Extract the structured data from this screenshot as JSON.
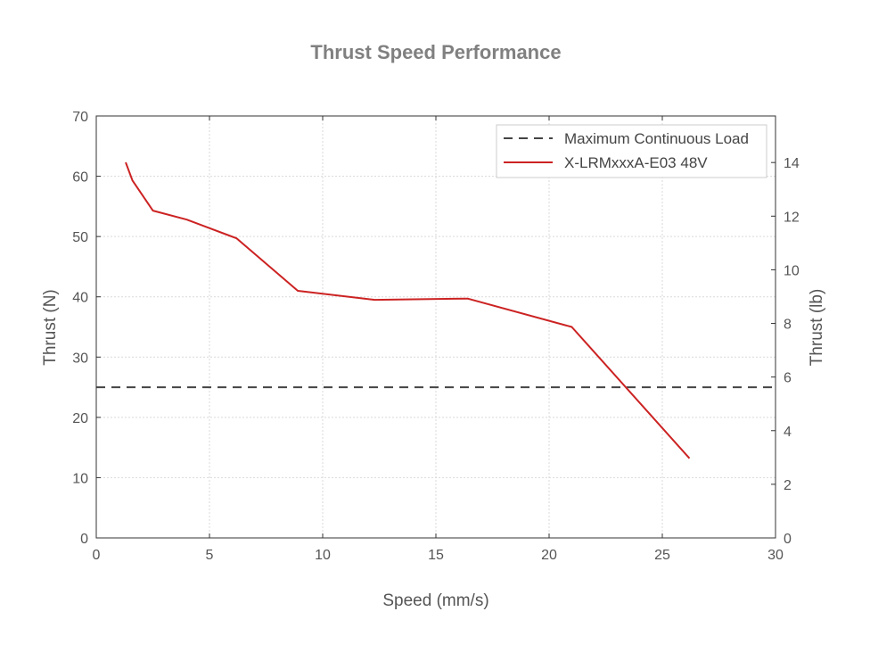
{
  "chart_data": {
    "type": "line",
    "title": "Thrust Speed Performance",
    "xlabel": "Speed (mm/s)",
    "ylabel": "Thrust (N)",
    "y2label": "Thrust (lb)",
    "xlim": [
      0,
      30
    ],
    "ylim": [
      0,
      70
    ],
    "y2lim": [
      0,
      15.736
    ],
    "xticks": [
      "0",
      "5",
      "10",
      "15",
      "20",
      "25",
      "30"
    ],
    "yticks": [
      "0",
      "10",
      "20",
      "30",
      "40",
      "50",
      "60",
      "70"
    ],
    "y2ticks": [
      "0",
      "2",
      "4",
      "6",
      "8",
      "10",
      "12",
      "14"
    ],
    "grid": true,
    "legend_position": "top-right",
    "series": [
      {
        "name": "Maximum Continuous Load",
        "style": "dashed",
        "color": "#444444",
        "x": [
          0,
          30
        ],
        "y": [
          25,
          25
        ]
      },
      {
        "name": "X-LRMxxxA-E03 48V",
        "style": "solid",
        "color": "#cc2222",
        "x": [
          1.3,
          1.6,
          2.5,
          4.0,
          6.2,
          8.9,
          12.3,
          16.4,
          21.0,
          26.2
        ],
        "y": [
          62.3,
          59.3,
          54.3,
          52.8,
          49.7,
          41.0,
          39.5,
          39.7,
          35.0,
          13.2
        ]
      }
    ]
  }
}
